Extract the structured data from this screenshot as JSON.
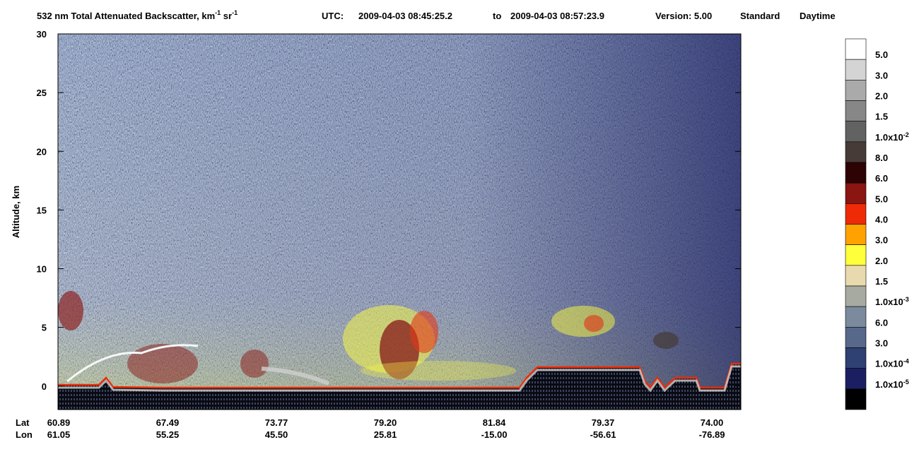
{
  "chart_data": {
    "type": "heatmap",
    "title": {
      "main": "532 nm Total Attenuated Backscatter, km",
      "sup1": "-1",
      "mid": " sr",
      "sup2": "-1"
    },
    "utc_label": "UTC:",
    "start_time": "2009-04-03 08:45:25.2",
    "to": "to",
    "end_time": "2009-04-03 08:57:23.9",
    "version": "Version: 5.00",
    "product": "Standard",
    "daytime": "Daytime",
    "ylabel": "Altitude, km",
    "ylim": [
      -2,
      30
    ],
    "yticks": [
      0,
      5,
      10,
      15,
      20,
      25,
      30
    ],
    "x_rows": [
      "Lat",
      "Lon"
    ],
    "lat": [
      "60.89",
      "67.49",
      "73.77",
      "79.20",
      "81.84",
      "79.37",
      "74.00"
    ],
    "lon": [
      "61.05",
      "55.25",
      "45.50",
      "25.81",
      "-15.00",
      "-56.61",
      "-76.89"
    ],
    "colorbar": {
      "colors": [
        "#ffffff",
        "#d4d4d4",
        "#aaaaaa",
        "#878787",
        "#626262",
        "#463b37",
        "#2e0303",
        "#8b1511",
        "#ee2b06",
        "#ffa100",
        "#ffff3c",
        "#e9d9ae",
        "#a7aaa0",
        "#7b8a9c",
        "#57688a",
        "#2f4072",
        "#1b1f62",
        "#000000"
      ],
      "labels": [
        {
          "text": "5.0"
        },
        {
          "text": "3.0"
        },
        {
          "text": "2.0"
        },
        {
          "text": "1.5"
        },
        {
          "text": "1.0x10",
          "exp": "-2"
        },
        {
          "text": "8.0"
        },
        {
          "text": "6.0"
        },
        {
          "text": "5.0"
        },
        {
          "text": "4.0"
        },
        {
          "text": "3.0"
        },
        {
          "text": "2.0"
        },
        {
          "text": "1.5"
        },
        {
          "text": "1.0x10",
          "exp": "-3"
        },
        {
          "text": "6.0"
        },
        {
          "text": "3.0"
        },
        {
          "text": "1.0x10",
          "exp": "-4"
        },
        {
          "text": "1.0x10",
          "exp": "-5"
        }
      ]
    }
  }
}
